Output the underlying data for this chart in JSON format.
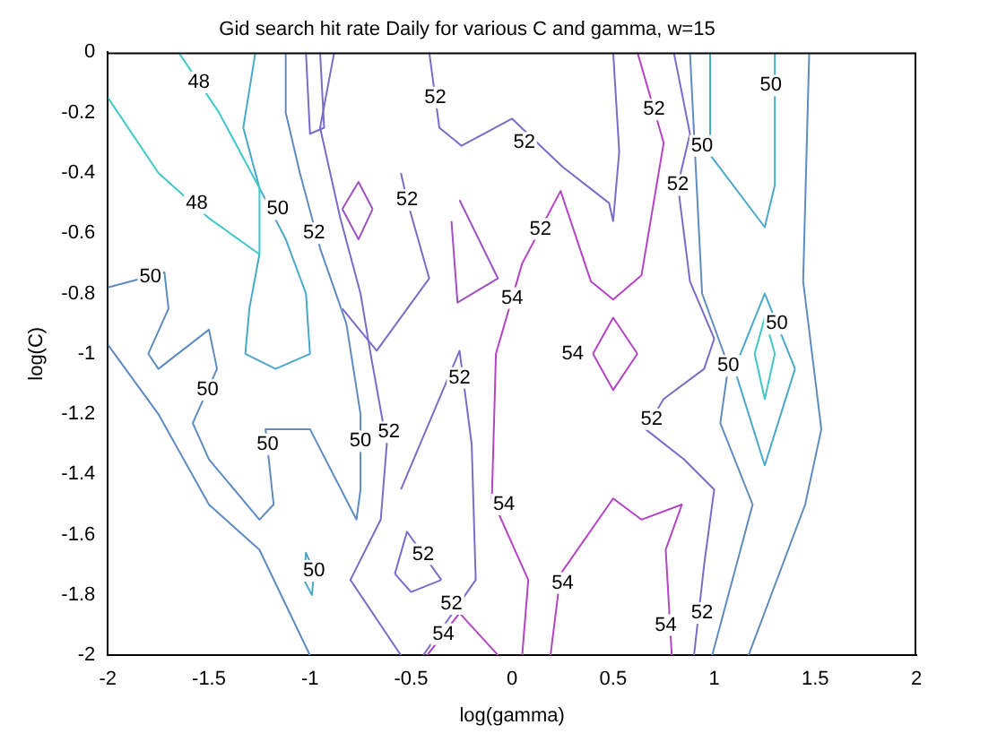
{
  "chart_data": {
    "type": "line",
    "title": "Gid search hit rate Daily for various C and gamma, w=15",
    "xlabel": "log(gamma)",
    "ylabel": "log(C)",
    "xlim": [
      -2,
      2
    ],
    "xticks": [
      -2,
      -1.5,
      -1,
      -0.5,
      0,
      0.5,
      1,
      1.5,
      2
    ],
    "ylim": [
      -2,
      0
    ],
    "yticks": [
      -2,
      -1.8,
      -1.6,
      -1.4,
      -1.2,
      -1,
      -0.8,
      -0.6,
      -0.4,
      -0.2,
      0
    ],
    "grid": false,
    "legend": false,
    "series": [
      {
        "color": "#40c8c8",
        "x": [
          -2,
          -1.75,
          -1.5,
          -1.25,
          -1.25,
          -1.45,
          -1.65
        ],
        "values": [
          -0.15,
          -0.4,
          -0.55,
          -0.67,
          -0.45,
          -0.2,
          0
        ]
      },
      {
        "color": "#4aa8c8",
        "x": [
          -1.27,
          -1.33,
          -1.25,
          -1.12,
          -1.02,
          -1,
          -1.17,
          -1.32,
          -1.3,
          -1.25
        ],
        "values": [
          0,
          -0.25,
          -0.45,
          -0.62,
          -0.8,
          -1,
          -1.05,
          -1,
          -0.85,
          -0.67
        ]
      },
      {
        "color": "#5f8cc0",
        "x": [
          -2,
          -1.72,
          -1.7,
          -1.8,
          -1.75,
          -1.5,
          -1.46,
          -1.58,
          -1.5,
          -1.25,
          -1.18,
          -1.22,
          -1,
          -0.77,
          -0.75,
          -0.75,
          -0.82,
          -0.95,
          -1.05,
          -1.12,
          -1.12
        ],
        "values": [
          -0.78,
          -0.73,
          -0.85,
          -1,
          -1.05,
          -0.92,
          -1.05,
          -1.23,
          -1.35,
          -1.55,
          -1.5,
          -1.25,
          -1.25,
          -1.55,
          -1.45,
          -1.2,
          -0.9,
          -0.65,
          -0.4,
          -0.2,
          0
        ]
      },
      {
        "color": "#5f8cc0",
        "x": [
          -2,
          -1.75,
          -1.5,
          -1.25,
          -1
        ],
        "values": [
          -0.97,
          -1.2,
          -1.5,
          -1.65,
          -2
        ]
      },
      {
        "color": "#4aa8c8",
        "x": [
          -1.03,
          -1.02,
          -0.98
        ],
        "values": [
          -1.75,
          -1.66,
          -1.72
        ]
      },
      {
        "color": "#4aa8c8",
        "x": [
          -1.03,
          -0.99,
          -0.98
        ],
        "values": [
          -1.75,
          -1.8,
          -1.72
        ]
      },
      {
        "color": "#7a6cc8",
        "x": [
          -1.02,
          -1,
          -0.93,
          -0.95
        ],
        "values": [
          0,
          -0.27,
          -0.25,
          0
        ]
      },
      {
        "color": "#7a6cc8",
        "x": [
          -0.88,
          -0.95,
          -0.85,
          -0.75,
          -0.7,
          -0.62,
          -0.65,
          -0.8,
          -0.55
        ],
        "values": [
          0,
          -0.25,
          -0.55,
          -0.8,
          -1,
          -1.3,
          -1.55,
          -1.75,
          -2
        ]
      },
      {
        "color": "#a050c0",
        "x": [
          -0.84,
          -0.76,
          -0.69
        ],
        "values": [
          -0.52,
          -0.43,
          -0.52
        ]
      },
      {
        "color": "#a050c0",
        "x": [
          -0.84,
          -0.76,
          -0.69
        ],
        "values": [
          -0.52,
          -0.62,
          -0.52
        ]
      },
      {
        "color": "#7a6cc8",
        "x": [
          -0.84,
          -0.67,
          -0.41,
          -0.52,
          -0.55
        ],
        "values": [
          -0.85,
          -0.99,
          -0.75,
          -0.49,
          -0.4
        ]
      },
      {
        "color": "#7a6cc8",
        "x": [
          -0.41,
          -0.36,
          -0.25,
          0,
          0.25,
          0.48,
          0.5,
          0.53,
          0.5
        ],
        "values": [
          0,
          -0.25,
          -0.31,
          -0.22,
          -0.38,
          -0.5,
          -0.56,
          -0.33,
          0
        ]
      },
      {
        "color": "#a050c0",
        "x": [
          -0.26,
          -0.07,
          -0.27,
          -0.3
        ],
        "values": [
          -0.49,
          -0.75,
          -0.83,
          -0.56
        ]
      },
      {
        "color": "#b444c4",
        "x": [
          0.05,
          0.08,
          -0.1,
          -0.08,
          0.05,
          0.24,
          0.39,
          0.5,
          0.64,
          0.75,
          0.62
        ],
        "values": [
          -2,
          -1.75,
          -1.48,
          -1,
          -0.7,
          -0.46,
          -0.76,
          -0.82,
          -0.74,
          -0.3,
          0
        ]
      },
      {
        "color": "#b444c4",
        "x": [
          0.19,
          0.24,
          0.5,
          0.64,
          0.84,
          0.76,
          0.79
        ],
        "values": [
          -2,
          -1.73,
          -1.48,
          -1.55,
          -1.5,
          -1.65,
          -2
        ]
      },
      {
        "color": "#b444c4",
        "x": [
          0.4,
          0.5,
          0.62
        ],
        "values": [
          -1,
          -0.88,
          -1
        ]
      },
      {
        "color": "#b444c4",
        "x": [
          0.4,
          0.5,
          0.62
        ],
        "values": [
          -1,
          -1.12,
          -1
        ]
      },
      {
        "color": "#7a6cc8",
        "x": [
          0.8,
          0.88,
          0.82,
          0.88,
          1,
          0.95,
          0.75,
          0.66,
          0.85,
          1,
          0.95,
          0.9
        ],
        "values": [
          0,
          -0.27,
          -0.44,
          -0.76,
          -0.95,
          -1.05,
          -1.15,
          -1.25,
          -1.35,
          -1.45,
          -1.7,
          -2
        ]
      },
      {
        "color": "#5f8cc0",
        "x": [
          0.88,
          0.94,
          1.07,
          1.03,
          1.19,
          0.99
        ],
        "values": [
          0,
          -0.8,
          -1.04,
          -1.23,
          -1.5,
          -2
        ]
      },
      {
        "color": "#4aa8c8",
        "x": [
          0.98,
          0.98,
          1.25,
          1.3,
          1.3
        ],
        "values": [
          0,
          -0.34,
          -0.58,
          -0.44,
          0
        ]
      },
      {
        "color": "#5f8cc0",
        "x": [
          1.47,
          1.44,
          1.53,
          1.45,
          1.17
        ],
        "values": [
          0,
          -0.76,
          -1.25,
          -1.5,
          -2
        ]
      },
      {
        "color": "#4aa8c8",
        "x": [
          1.1,
          1.25,
          1.4
        ],
        "values": [
          -1.05,
          -0.8,
          -1.05
        ]
      },
      {
        "color": "#4aa8c8",
        "x": [
          1.1,
          1.25,
          1.4
        ],
        "values": [
          -1.05,
          -1.37,
          -1.05
        ]
      },
      {
        "color": "#40c8c8",
        "x": [
          1.2,
          1.25,
          1.3
        ],
        "values": [
          -1,
          -0.88,
          -1
        ]
      },
      {
        "color": "#40c8c8",
        "x": [
          1.2,
          1.25,
          1.3
        ],
        "values": [
          -1,
          -1.15,
          -1
        ]
      },
      {
        "color": "#7a6cc8",
        "x": [
          -0.55,
          -0.26,
          -0.2,
          -0.18,
          -0.44
        ],
        "values": [
          -1.45,
          -0.99,
          -1.3,
          -1.75,
          -2
        ]
      },
      {
        "color": "#7a6cc8",
        "x": [
          -0.58,
          -0.52,
          -0.35
        ],
        "values": [
          -1.73,
          -1.59,
          -1.75
        ]
      },
      {
        "color": "#7a6cc8",
        "x": [
          -0.58,
          -0.5,
          -0.35
        ],
        "values": [
          -1.73,
          -1.79,
          -1.75
        ]
      },
      {
        "color": "#b444c4",
        "x": [
          -0.42,
          -0.26,
          -0.07
        ],
        "values": [
          -2,
          -1.86,
          -2
        ]
      }
    ],
    "annotations": [
      {
        "text": "48",
        "x": -1.55,
        "y": -0.1
      },
      {
        "text": "48",
        "x": -1.56,
        "y": -0.5
      },
      {
        "text": "50",
        "x": -1.16,
        "y": -0.52
      },
      {
        "text": "52",
        "x": -0.98,
        "y": -0.6
      },
      {
        "text": "50",
        "x": -1.79,
        "y": -0.745
      },
      {
        "text": "50",
        "x": -1.507,
        "y": -1.12
      },
      {
        "text": "50",
        "x": -1.21,
        "y": -1.3
      },
      {
        "text": "50",
        "x": -0.75,
        "y": -1.29
      },
      {
        "text": "50",
        "x": -0.98,
        "y": -1.72
      },
      {
        "text": "52",
        "x": -0.38,
        "y": -0.15
      },
      {
        "text": "52",
        "x": -0.52,
        "y": -0.49
      },
      {
        "text": "52",
        "x": 0.06,
        "y": -0.3
      },
      {
        "text": "52",
        "x": 0.14,
        "y": -0.586
      },
      {
        "text": "54",
        "x": 0,
        "y": -0.815
      },
      {
        "text": "54",
        "x": 0.3,
        "y": -1
      },
      {
        "text": "52",
        "x": 0.702,
        "y": -0.19
      },
      {
        "text": "52",
        "x": 0.82,
        "y": -0.44
      },
      {
        "text": "50",
        "x": 0.94,
        "y": -0.31
      },
      {
        "text": "50",
        "x": 1.28,
        "y": -0.11
      },
      {
        "text": "50",
        "x": 1.31,
        "y": -0.9
      },
      {
        "text": "52",
        "x": -0.61,
        "y": -1.26
      },
      {
        "text": "52",
        "x": -0.26,
        "y": -1.08
      },
      {
        "text": "52",
        "x": -0.44,
        "y": -1.665
      },
      {
        "text": "52",
        "x": -0.3,
        "y": -1.83
      },
      {
        "text": "54",
        "x": -0.34,
        "y": -1.93
      },
      {
        "text": "54",
        "x": -0.04,
        "y": -1.5
      },
      {
        "text": "54",
        "x": 0.25,
        "y": -1.76
      },
      {
        "text": "50",
        "x": 1.07,
        "y": -1.04
      },
      {
        "text": "52",
        "x": 0.69,
        "y": -1.217
      },
      {
        "text": "52",
        "x": 0.94,
        "y": -1.86
      },
      {
        "text": "54",
        "x": 0.76,
        "y": -1.9
      }
    ]
  }
}
